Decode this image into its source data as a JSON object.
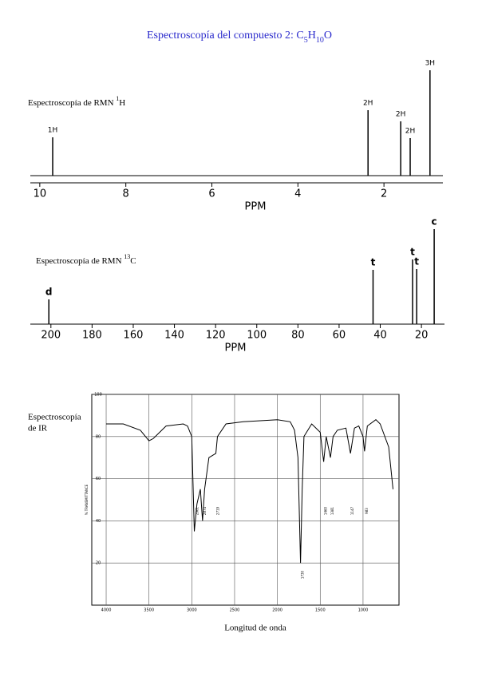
{
  "title": [
    "Espectroscopía del compuesto 2: C",
    "5",
    "H",
    "10",
    "O"
  ],
  "chart_data": [
    {
      "type": "stem",
      "label": [
        "Espectroscopía de RMN ",
        "1",
        "H"
      ],
      "x_label": "PPM",
      "x": [
        9.7,
        2.37,
        1.61,
        1.39,
        0.93
      ],
      "values": [
        48,
        82,
        68,
        47,
        132
      ],
      "peak_labels": [
        "1H",
        "2H",
        "2H",
        "2H",
        "3H"
      ],
      "xlim": [
        10.22,
        0.63
      ],
      "xticks": [
        10,
        8,
        6,
        4,
        2
      ],
      "ylim": [
        0,
        140
      ],
      "color": "#000000"
    },
    {
      "type": "stem",
      "label": [
        "Espectroscopía de RMN ",
        "13",
        "C"
      ],
      "x_label": "PPM",
      "x": [
        201,
        43.5,
        24.3,
        22.3,
        13.8
      ],
      "values": [
        31,
        68,
        81,
        69,
        119
      ],
      "peak_labels": [
        "d",
        "t",
        "t",
        "t",
        "c"
      ],
      "xlim": [
        210,
        8.8
      ],
      "xticks": [
        200,
        180,
        160,
        140,
        120,
        100,
        80,
        60,
        40,
        20
      ],
      "ylim": [
        0,
        130
      ],
      "color": "#000000"
    },
    {
      "type": "line",
      "label": [
        "Espectroscopía",
        "de IR"
      ],
      "x_label": "Longitud de onda",
      "y_label": "% TRANSMITTANCE",
      "x": [
        4000,
        3800,
        3600,
        3500,
        3450,
        3300,
        3100,
        3050,
        3000,
        2970,
        2940,
        2900,
        2874,
        2850,
        2800,
        2719,
        2700,
        2600,
        2400,
        2200,
        2000,
        1850,
        1800,
        1760,
        1730,
        1710,
        1690,
        1600,
        1500,
        1460,
        1430,
        1381,
        1350,
        1300,
        1200,
        1147,
        1100,
        1050,
        1000,
        983,
        950,
        850,
        800,
        700,
        650
      ],
      "values": [
        86,
        86,
        83,
        78,
        79,
        85,
        86,
        85,
        80,
        35,
        48,
        55,
        40,
        55,
        70,
        72,
        80,
        86,
        87,
        87.5,
        88,
        87,
        83,
        70,
        20,
        55,
        80,
        86,
        82,
        68,
        80,
        70,
        80,
        83,
        84,
        72,
        84,
        85,
        80,
        73,
        85,
        88,
        86,
        75,
        55
      ],
      "annotations": [
        2961,
        2874,
        2719,
        1730,
        1460,
        1381,
        1147,
        983
      ],
      "xlim": [
        4168,
        580
      ],
      "xticks": [
        4000,
        3500,
        3000,
        2500,
        2000,
        1500,
        1000
      ],
      "ylim": [
        0,
        100
      ],
      "yticks": [
        20,
        40,
        60,
        80,
        100
      ],
      "grid": true,
      "color": "#000000"
    }
  ]
}
